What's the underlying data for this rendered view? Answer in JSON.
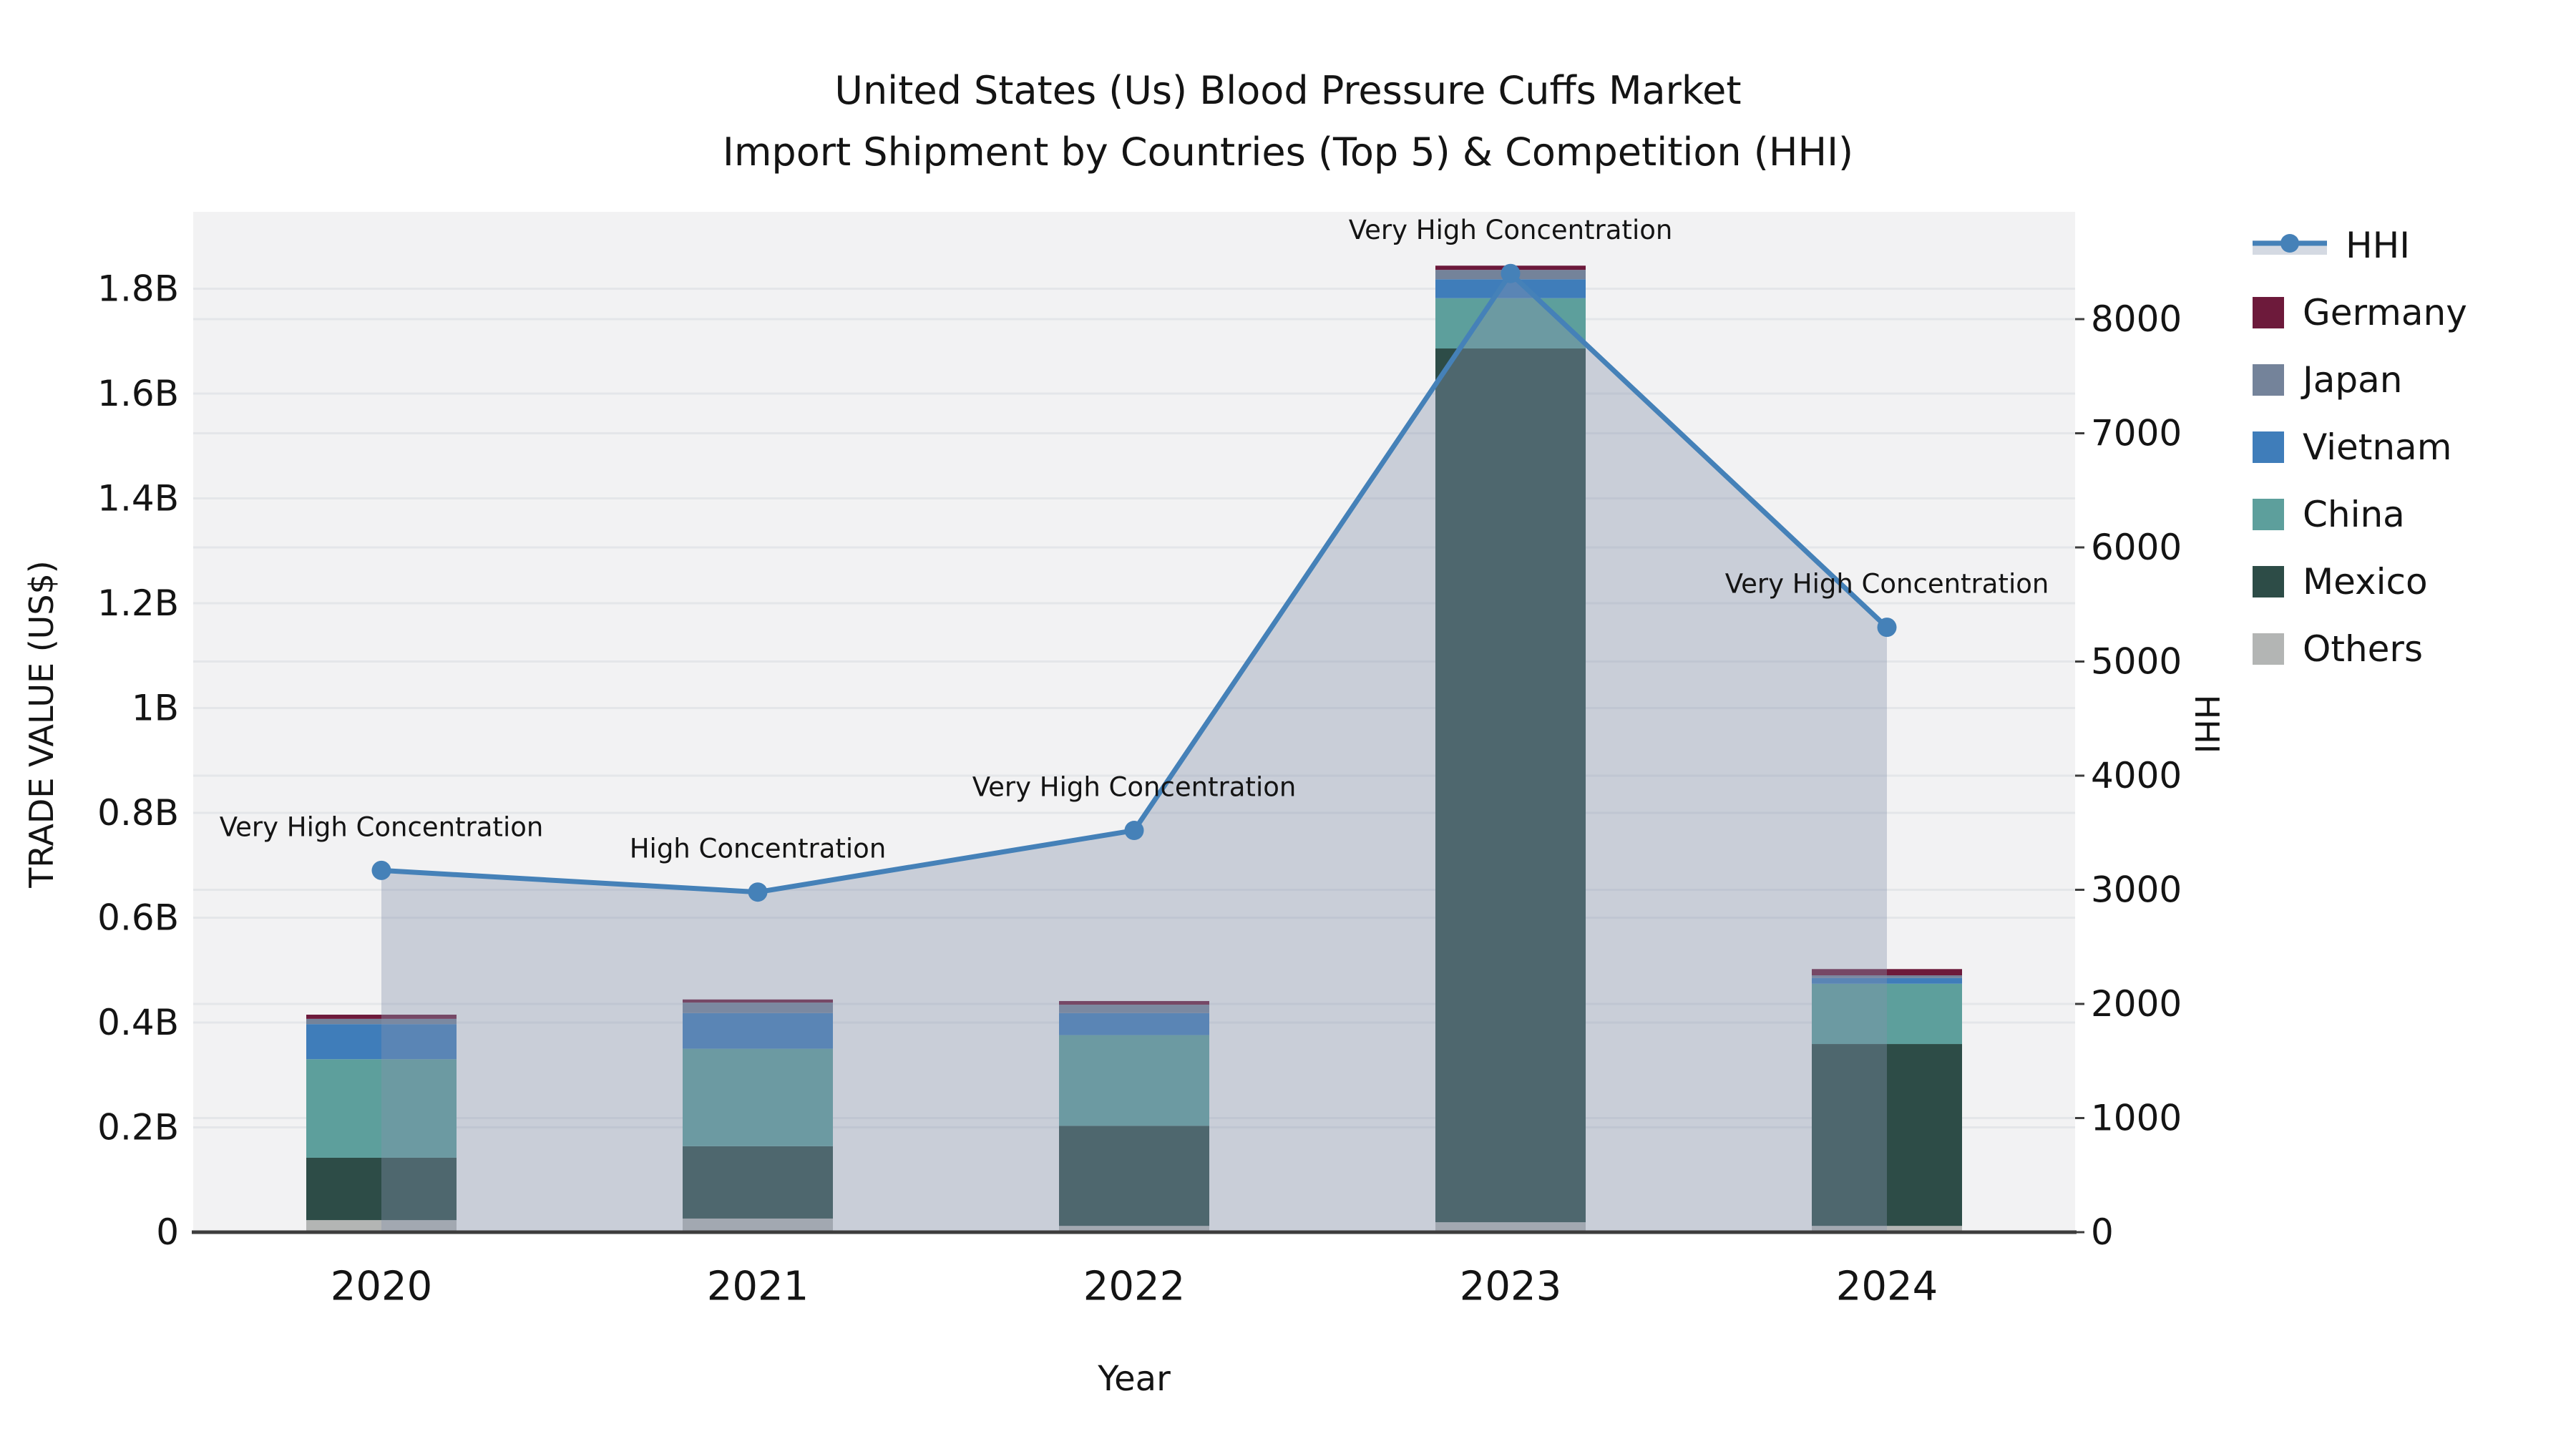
{
  "title": {
    "line1": "United States (Us) Blood Pressure Cuffs Market",
    "line2": "Import Shipment by Countries (Top 5) & Competition (HHI)"
  },
  "legend": {
    "items": [
      {
        "label": "HHI",
        "type": "line",
        "line_color": "#4581b8",
        "band_color": "#d4d9e2"
      },
      {
        "label": "Germany",
        "type": "swatch",
        "color": "#6d1a3b"
      },
      {
        "label": "Japan",
        "type": "swatch",
        "color": "#74839a"
      },
      {
        "label": "Vietnam",
        "type": "swatch",
        "color": "#3f7dba"
      },
      {
        "label": "China",
        "type": "swatch",
        "color": "#5d9f9c"
      },
      {
        "label": "Mexico",
        "type": "swatch",
        "color": "#2d4c47"
      },
      {
        "label": "Others",
        "type": "swatch",
        "color": "#b3b5b4"
      }
    ]
  },
  "chart_data": {
    "type": "bar",
    "subtype": "stacked-bar-with-line",
    "title": "United States (Us) Blood Pressure Cuffs Market Import Shipment by Countries (Top 5) & Competition (HHI)",
    "xlabel": "Year",
    "ylabel_left": "TRADE VALUE (US$)",
    "ylabel_right": "HHI",
    "categories": [
      "2020",
      "2021",
      "2022",
      "2023",
      "2024"
    ],
    "values_unit": "US$ millions (estimated from axis)",
    "series": [
      {
        "name": "Germany",
        "color": "#6d1a3b",
        "values": [
          8,
          6,
          7,
          8,
          12
        ]
      },
      {
        "name": "Japan",
        "color": "#74839a",
        "values": [
          10,
          20,
          16,
          18,
          5
        ]
      },
      {
        "name": "Vietnam",
        "color": "#3f7dba",
        "values": [
          67,
          68,
          42,
          36,
          11
        ]
      },
      {
        "name": "China",
        "color": "#5d9f9c",
        "values": [
          188,
          186,
          173,
          96,
          115
        ]
      },
      {
        "name": "Mexico",
        "color": "#2d4c47",
        "values": [
          119,
          138,
          191,
          1667,
          347
        ]
      },
      {
        "name": "Others",
        "color": "#b3b5b4",
        "values": [
          23,
          26,
          12,
          19,
          12
        ]
      }
    ],
    "stack_order_bottom_to_top": [
      "Others",
      "Mexico",
      "China",
      "Vietnam",
      "Japan",
      "Germany"
    ],
    "line_series": {
      "name": "HHI",
      "axis": "right",
      "color": "#4581b8",
      "area_fill": "rgba(134,147,173,0.38)",
      "values": [
        3170,
        2980,
        3520,
        8400,
        5300
      ]
    },
    "annotations": [
      {
        "category": "2020",
        "text": "Very High Concentration"
      },
      {
        "category": "2021",
        "text": "High Concentration"
      },
      {
        "category": "2022",
        "text": "Very High Concentration"
      },
      {
        "category": "2023",
        "text": "Very High Concentration"
      },
      {
        "category": "2024",
        "text": "Very High Concentration"
      }
    ],
    "yticks_left": [
      {
        "label": "0",
        "millions": 0
      },
      {
        "label": "0.2B",
        "millions": 200
      },
      {
        "label": "0.4B",
        "millions": 400
      },
      {
        "label": "0.6B",
        "millions": 600
      },
      {
        "label": "0.8B",
        "millions": 800
      },
      {
        "label": "1B",
        "millions": 1000
      },
      {
        "label": "1.2B",
        "millions": 1200
      },
      {
        "label": "1.4B",
        "millions": 1400
      },
      {
        "label": "1.6B",
        "millions": 1600
      },
      {
        "label": "1.8B",
        "millions": 1800
      }
    ],
    "yticks_right": [
      {
        "label": "0",
        "value": 0
      },
      {
        "label": "1000",
        "value": 1000
      },
      {
        "label": "2000",
        "value": 2000
      },
      {
        "label": "3000",
        "value": 3000
      },
      {
        "label": "4000",
        "value": 4000
      },
      {
        "label": "5000",
        "value": 5000
      },
      {
        "label": "6000",
        "value": 6000
      },
      {
        "label": "7000",
        "value": 7000
      },
      {
        "label": "8000",
        "value": 8000
      }
    ],
    "ylim_left_millions": [
      0,
      1950
    ],
    "ylim_right": [
      0,
      8950
    ],
    "grid": true,
    "legend_position": "right",
    "plot_background": "#f2f2f3"
  }
}
